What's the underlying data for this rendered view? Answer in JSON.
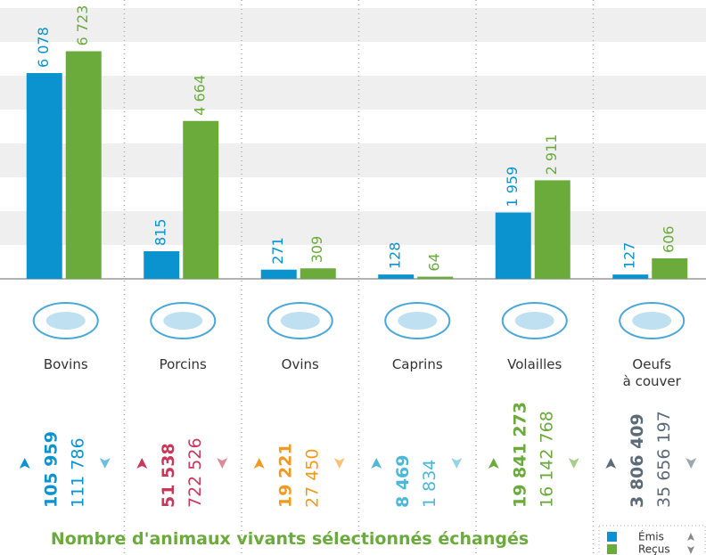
{
  "chart_data": {
    "type": "bar",
    "title": "Nombre d'animaux vivants sélectionnés échangés",
    "categories": [
      "Bovins",
      "Porcins",
      "Ovins",
      "Caprins",
      "Volailles",
      "Oeufs\nà couver"
    ],
    "series": [
      {
        "name": "Émis",
        "color": "#0a93cf",
        "values": [
          6078,
          815,
          271,
          128,
          1959,
          127
        ],
        "value_labels": [
          "6 078",
          "815",
          "271",
          "128",
          "1 959",
          "127"
        ]
      },
      {
        "name": "Reçus",
        "color": "#6aab3c",
        "values": [
          6723,
          4664,
          309,
          64,
          2911,
          606
        ],
        "value_labels": [
          "6 723",
          "4 664",
          "309",
          "64",
          "2 911",
          "606"
        ]
      }
    ],
    "ylim": [
      0,
      8000
    ],
    "yticks": [
      0,
      1000,
      2000,
      3000,
      4000,
      5000,
      6000,
      7000,
      8000
    ],
    "totals": [
      {
        "emitted": "105 959",
        "received": "111 786",
        "color": "#0a93cf"
      },
      {
        "emitted": "51 538",
        "received": "722 526",
        "color": "#c8385a"
      },
      {
        "emitted": "19 221",
        "received": "27 450",
        "color": "#f39a1e"
      },
      {
        "emitted": "8 469",
        "received": "1 834",
        "color": "#4bb8d8"
      },
      {
        "emitted": "19 841 273",
        "received": "16 142 768",
        "color": "#6aab3c"
      },
      {
        "emitted": "3 806 409",
        "received": "35 656 197",
        "color": "#5d6b78"
      }
    ]
  }
}
